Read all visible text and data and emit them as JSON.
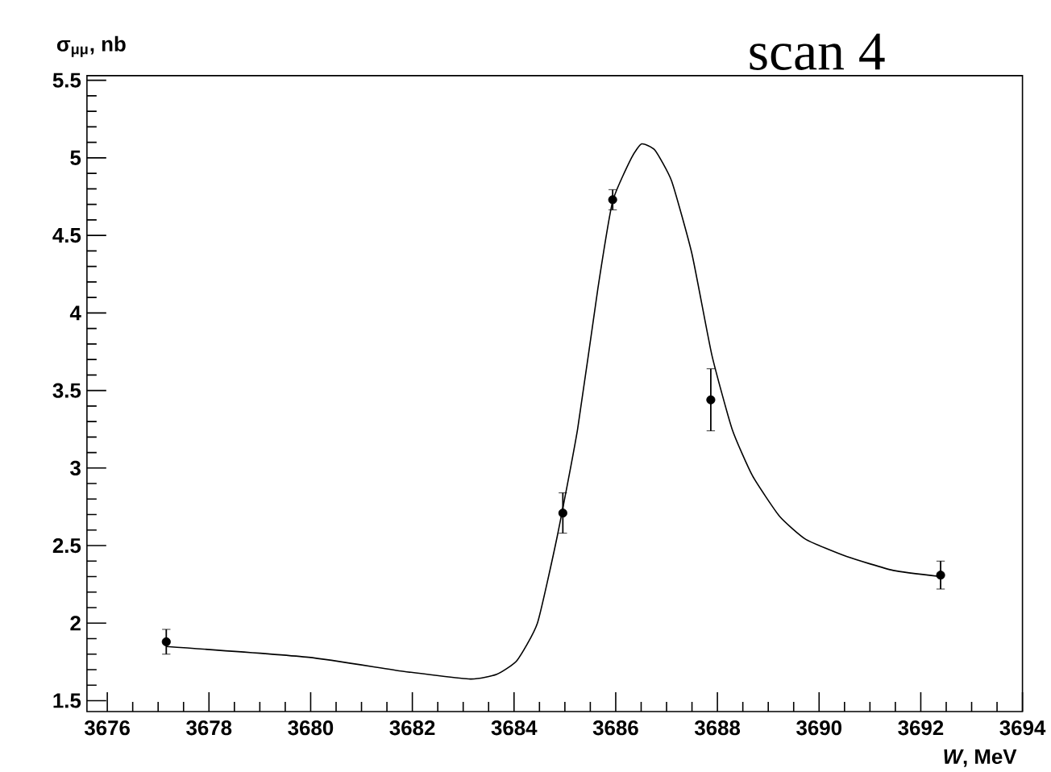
{
  "chart_data": {
    "type": "scatter",
    "title": "scan 4",
    "xlabel": "*W*, MeV",
    "ylabel": "σ$_{μμ}$, nb",
    "xlim": [
      3675.6,
      3694
    ],
    "ylim": [
      1.43,
      5.53
    ],
    "xticks": [
      3676,
      3678,
      3680,
      3682,
      3684,
      3686,
      3688,
      3690,
      3692,
      3694
    ],
    "yticks": [
      1.5,
      2,
      2.5,
      3,
      3.5,
      4,
      4.5,
      5,
      5.5
    ],
    "grid": false,
    "series": [
      {
        "marker": "circle",
        "color": "#000000",
        "x": [
          3677.16,
          3684.96,
          3685.94,
          3687.87,
          3692.39
        ],
        "values": [
          1.88,
          2.71,
          4.73,
          3.44,
          2.31
        ],
        "errors": [
          0.08,
          0.13,
          0.065,
          0.2,
          0.09
        ]
      },
      {
        "type": "line",
        "color": "#000000",
        "marker": "none",
        "x": [
          3677.16,
          3679.96,
          3681.81,
          3683.14,
          3683.66,
          3684.06,
          3684.46,
          3684.85,
          3685.25,
          3685.65,
          3685.94,
          3686.31,
          3686.51,
          3686.77,
          3687.1,
          3687.5,
          3687.89,
          3688.29,
          3688.69,
          3689.22,
          3689.74,
          3690.54,
          3691.46,
          3692.39
        ],
        "values": [
          1.85,
          1.78,
          1.69,
          1.64,
          1.67,
          1.76,
          2.0,
          2.56,
          3.25,
          4.16,
          4.72,
          5.0,
          5.09,
          5.05,
          4.85,
          4.38,
          3.73,
          3.25,
          2.95,
          2.69,
          2.54,
          2.43,
          2.34,
          2.3
        ]
      }
    ]
  }
}
